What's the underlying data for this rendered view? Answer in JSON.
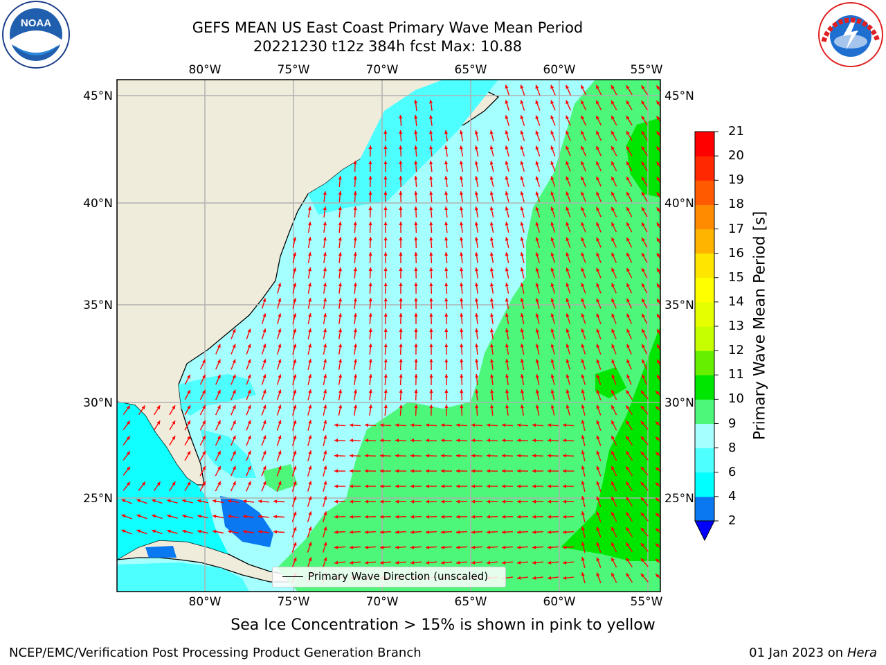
{
  "title": {
    "line1": "GEFS MEAN US East Coast Primary Wave Mean Period",
    "line2": "20221230 t12z 384h fcst   Max: 10.88"
  },
  "map": {
    "lon_ticks": [
      "80°W",
      "75°W",
      "70°W",
      "65°W",
      "60°W",
      "55°W"
    ],
    "lat_ticks": [
      "45°N",
      "40°N",
      "35°N",
      "30°N",
      "25°N"
    ],
    "legend_label": "Primary Wave Direction (unscaled)",
    "land_color": "#efecdc",
    "arrow_color": "#ff0000",
    "gridline_color": "#b0b0b0"
  },
  "colorbar": {
    "label": "Primary Wave Mean Period [s]",
    "levels": [
      "2",
      "4",
      "6",
      "8",
      "9",
      "10",
      "11",
      "12",
      "13",
      "14",
      "15",
      "16",
      "17",
      "18",
      "19",
      "20",
      "21"
    ],
    "colors": [
      "#0000ff",
      "#0a78f0",
      "#00ffff",
      "#4dffff",
      "#a6ffff",
      "#4cf77a",
      "#00e600",
      "#66f000",
      "#c6ff00",
      "#e6ff00",
      "#ffff00",
      "#ffe600",
      "#ffb400",
      "#ff8c00",
      "#ff5a00",
      "#ff2800",
      "#ff0000"
    ]
  },
  "logos": {
    "left": "noaa-logo",
    "left_text": "NOAA",
    "right": "nws-logo",
    "right_text": "NATIONAL WEATHER SERVICE"
  },
  "caption": "Sea Ice Concentration > 15% is shown in pink to yellow",
  "footer": {
    "left": "NCEP/EMC/Verification Post Processing Product Generation Branch",
    "right_date": "01 Jan 2023 on ",
    "right_host": "Hera"
  }
}
